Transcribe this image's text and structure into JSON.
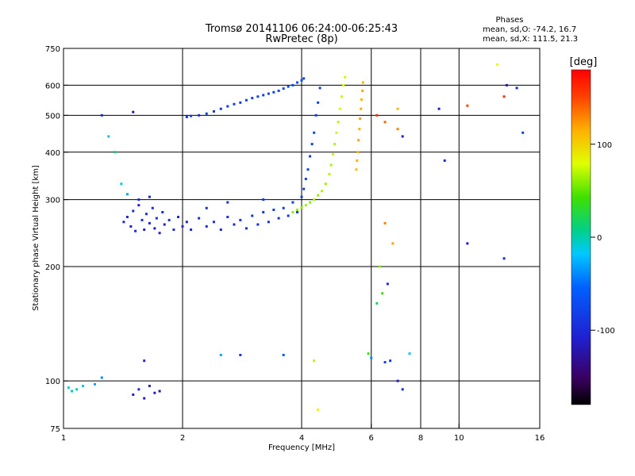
{
  "chart_data": {
    "type": "scatter",
    "title": "Tromsø 20141106 06:24:00-06:25:43",
    "subtitle": "RwPretec (8p)",
    "xlabel": "Frequency [MHz]",
    "ylabel": "Stationary phase Virtual Height [km]",
    "xscale": "log",
    "yscale": "log",
    "xlim": [
      1,
      16
    ],
    "ylim": [
      75,
      750
    ],
    "xticks": [
      1,
      2,
      4,
      6,
      8,
      10,
      16
    ],
    "xtick_labels": [
      "1",
      "2",
      "4",
      "6",
      "8",
      "10",
      "16"
    ],
    "xgrid": [
      2,
      4,
      6,
      8,
      10
    ],
    "yticks": [
      75,
      100,
      200,
      300,
      400,
      500,
      600,
      750
    ],
    "ytick_labels": [
      "75",
      "100",
      "200",
      "300",
      "400",
      "500",
      "600",
      "750"
    ],
    "ygrid": [
      100,
      200,
      300,
      400,
      500,
      600
    ],
    "grid": true,
    "stats": {
      "heading": "Phases",
      "line1": "mean, sd,O: -74.2, 16.7",
      "line2": "mean, sd,X: 111.5, 21.3"
    },
    "colorbar": {
      "label": "[deg]",
      "range": [
        -180,
        180
      ],
      "ticks": [
        100,
        0,
        -100
      ],
      "tick_labels": [
        "100",
        "0",
        "-100"
      ]
    },
    "series": [
      {
        "points": [
          [
            1.42,
            262,
            -100
          ],
          [
            1.45,
            270,
            -105
          ],
          [
            1.48,
            255,
            -110
          ],
          [
            1.5,
            280,
            -95
          ],
          [
            1.52,
            248,
            -100
          ],
          [
            1.55,
            290,
            -110
          ],
          [
            1.58,
            265,
            -100
          ],
          [
            1.6,
            250,
            -105
          ],
          [
            1.62,
            275,
            -98
          ],
          [
            1.65,
            260,
            -108
          ],
          [
            1.68,
            285,
            -100
          ],
          [
            1.7,
            252,
            -112
          ],
          [
            1.72,
            268,
            -96
          ],
          [
            1.75,
            245,
            -105
          ],
          [
            1.78,
            278,
            -100
          ],
          [
            1.8,
            258,
            -110
          ],
          [
            1.85,
            265,
            -95
          ],
          [
            1.9,
            250,
            -100
          ],
          [
            1.95,
            270,
            -102
          ],
          [
            2.0,
            255,
            -98
          ],
          [
            2.05,
            262,
            -104
          ],
          [
            2.1,
            250,
            -100
          ],
          [
            2.2,
            268,
            -95
          ],
          [
            2.3,
            255,
            -100
          ],
          [
            2.4,
            262,
            -98
          ],
          [
            2.5,
            250,
            -102
          ],
          [
            2.6,
            270,
            -95
          ],
          [
            2.7,
            258,
            -100
          ],
          [
            2.8,
            265,
            -92
          ],
          [
            2.9,
            252,
            -98
          ],
          [
            3.0,
            272,
            -90
          ],
          [
            3.1,
            258,
            -95
          ],
          [
            3.2,
            278,
            -88
          ],
          [
            3.3,
            262,
            -92
          ],
          [
            3.4,
            282,
            -85
          ],
          [
            3.5,
            268,
            -90
          ],
          [
            3.6,
            285,
            -86
          ],
          [
            3.7,
            272,
            -88
          ],
          [
            3.8,
            295,
            -84
          ],
          [
            3.9,
            278,
            -86
          ],
          [
            4.0,
            305,
            -82
          ],
          [
            4.05,
            320,
            -84
          ],
          [
            4.1,
            340,
            -80
          ],
          [
            4.15,
            360,
            -78
          ],
          [
            4.2,
            390,
            -82
          ],
          [
            4.25,
            420,
            -80
          ],
          [
            4.3,
            450,
            -76
          ],
          [
            4.35,
            500,
            -80
          ],
          [
            4.4,
            540,
            -78
          ],
          [
            4.45,
            590,
            -82
          ],
          [
            1.55,
            300,
            -100
          ],
          [
            1.65,
            305,
            -105
          ],
          [
            2.3,
            285,
            -98
          ],
          [
            2.6,
            295,
            -94
          ],
          [
            3.2,
            300,
            -88
          ]
        ]
      },
      {
        "points": [
          [
            2.05,
            495,
            -90
          ],
          [
            2.1,
            498,
            -88
          ],
          [
            2.2,
            500,
            -92
          ],
          [
            2.3,
            505,
            -86
          ],
          [
            2.4,
            512,
            -90
          ],
          [
            2.5,
            520,
            -84
          ],
          [
            2.6,
            528,
            -88
          ],
          [
            2.7,
            535,
            -82
          ],
          [
            2.8,
            540,
            -86
          ],
          [
            2.9,
            548,
            -80
          ],
          [
            3.0,
            555,
            -84
          ],
          [
            3.1,
            560,
            -78
          ],
          [
            3.2,
            565,
            -82
          ],
          [
            3.3,
            570,
            -76
          ],
          [
            3.4,
            575,
            -80
          ],
          [
            3.5,
            580,
            -74
          ],
          [
            3.6,
            588,
            -78
          ],
          [
            3.7,
            595,
            -72
          ],
          [
            3.8,
            600,
            -76
          ],
          [
            3.9,
            610,
            -70
          ],
          [
            4.0,
            618,
            -74
          ],
          [
            4.05,
            625,
            -78
          ]
        ]
      },
      {
        "points": [
          [
            3.8,
            278,
            60
          ],
          [
            3.9,
            282,
            62
          ],
          [
            4.0,
            286,
            58
          ],
          [
            4.1,
            290,
            64
          ],
          [
            4.2,
            295,
            60
          ],
          [
            4.3,
            300,
            66
          ],
          [
            4.4,
            308,
            62
          ],
          [
            4.5,
            316,
            68
          ],
          [
            4.6,
            330,
            64
          ],
          [
            4.7,
            350,
            70
          ],
          [
            4.75,
            370,
            66
          ],
          [
            4.8,
            395,
            72
          ],
          [
            4.85,
            420,
            68
          ],
          [
            4.9,
            450,
            74
          ],
          [
            4.95,
            480,
            70
          ],
          [
            5.0,
            520,
            76
          ],
          [
            5.05,
            560,
            72
          ],
          [
            5.1,
            600,
            78
          ],
          [
            5.15,
            630,
            74
          ]
        ]
      },
      {
        "points": [
          [
            5.5,
            360,
            110
          ],
          [
            5.52,
            380,
            115
          ],
          [
            5.55,
            400,
            112
          ],
          [
            5.57,
            430,
            118
          ],
          [
            5.6,
            460,
            114
          ],
          [
            5.62,
            490,
            120
          ],
          [
            5.65,
            520,
            116
          ],
          [
            5.67,
            550,
            112
          ],
          [
            5.7,
            580,
            118
          ],
          [
            5.72,
            610,
            114
          ]
        ]
      },
      {
        "points": [
          [
            1.03,
            96,
            -10
          ],
          [
            1.05,
            94,
            -5
          ],
          [
            1.08,
            95,
            0
          ],
          [
            1.12,
            97,
            -20
          ],
          [
            1.2,
            98,
            -30
          ],
          [
            1.25,
            102,
            -40
          ],
          [
            1.5,
            92,
            -110
          ],
          [
            1.55,
            95,
            -100
          ],
          [
            1.6,
            90,
            -115
          ],
          [
            1.65,
            97,
            -105
          ],
          [
            1.7,
            93,
            -110
          ],
          [
            1.6,
            113,
            -100
          ],
          [
            1.75,
            94,
            -120
          ],
          [
            2.5,
            117,
            -30
          ],
          [
            2.8,
            117,
            -90
          ],
          [
            3.6,
            117,
            -60
          ],
          [
            4.3,
            113,
            70
          ],
          [
            4.4,
            84,
            80
          ],
          [
            5.9,
            118,
            40
          ],
          [
            6.0,
            115,
            -40
          ],
          [
            6.5,
            112,
            -80
          ],
          [
            6.7,
            113,
            -90
          ],
          [
            7.0,
            100,
            -110
          ],
          [
            7.2,
            95,
            -100
          ],
          [
            7.5,
            118,
            -20
          ],
          [
            6.2,
            160,
            20
          ],
          [
            6.4,
            170,
            40
          ],
          [
            6.6,
            180,
            -100
          ],
          [
            6.3,
            200,
            60
          ],
          [
            6.8,
            230,
            120
          ],
          [
            6.5,
            260,
            130
          ],
          [
            7.2,
            440,
            -110
          ],
          [
            7.0,
            460,
            130
          ],
          [
            6.5,
            480,
            140
          ],
          [
            6.2,
            500,
            160
          ],
          [
            7.0,
            520,
            110
          ],
          [
            8.9,
            520,
            -110
          ],
          [
            10.5,
            530,
            150
          ],
          [
            9.2,
            380,
            -100
          ],
          [
            10.5,
            230,
            -110
          ],
          [
            13.0,
            210,
            -100
          ],
          [
            12.5,
            680,
            80
          ],
          [
            13.0,
            560,
            160
          ],
          [
            14.0,
            590,
            -100
          ],
          [
            14.5,
            450,
            -80
          ],
          [
            13.2,
            600,
            -120
          ],
          [
            1.3,
            440,
            -20
          ],
          [
            1.35,
            400,
            10
          ],
          [
            1.4,
            330,
            -10
          ],
          [
            1.45,
            310,
            -30
          ],
          [
            1.25,
            500,
            -100
          ],
          [
            1.5,
            510,
            -120
          ]
        ]
      }
    ]
  }
}
